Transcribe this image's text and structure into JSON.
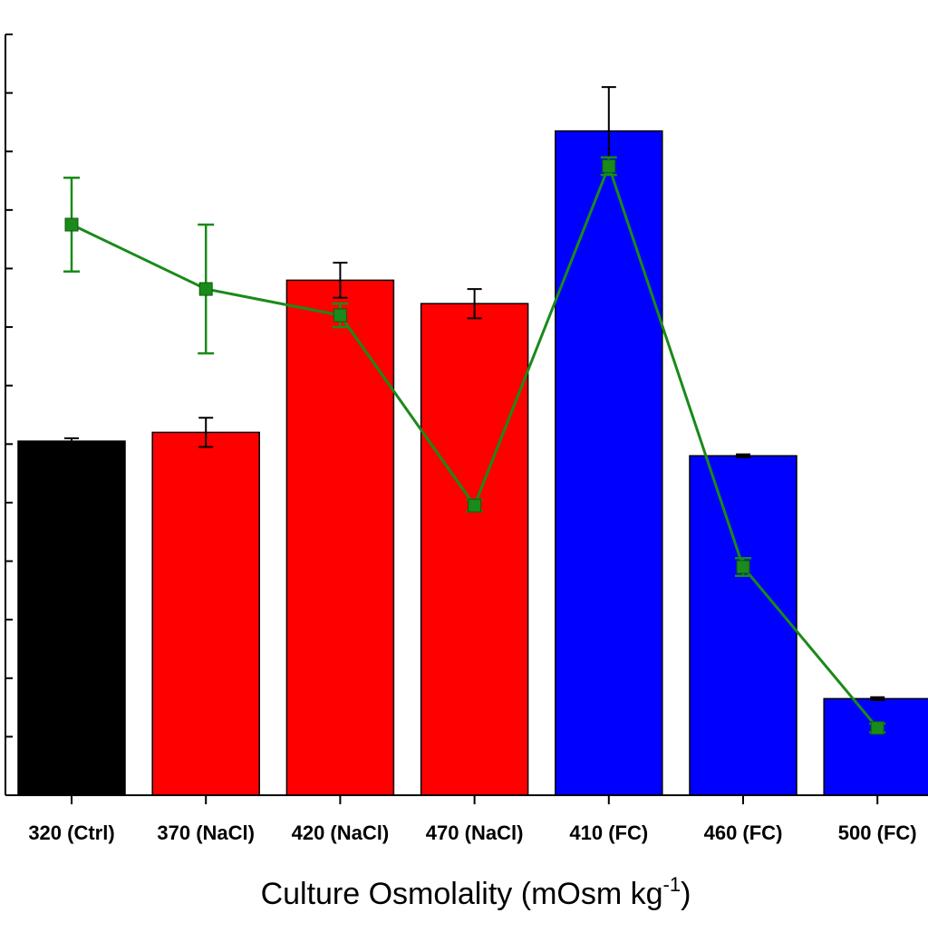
{
  "chart_data": {
    "type": "bar",
    "xlabel": {
      "text": "Culture Osmolality (mOsm kg",
      "superscript": "-1",
      "suffix": ")"
    },
    "categories": [
      "320 (Ctrl)",
      "370 (NaCl)",
      "420 (NaCl)",
      "470 (NaCl)",
      "410 (FC)",
      "460 (FC)",
      "500 (FC)"
    ],
    "bar_colors": [
      "#000000",
      "#ff0000",
      "#ff0000",
      "#ff0000",
      "#0000ff",
      "#0000ff",
      "#0000ff"
    ],
    "bar_values": [
      12.1,
      12.4,
      17.6,
      16.8,
      22.7,
      11.6,
      3.3
    ],
    "bar_errors": [
      0.1,
      0.5,
      0.6,
      0.5,
      1.5,
      0.05,
      0.05
    ],
    "line_series": {
      "color": "#1a8a1a",
      "values": [
        19.5,
        17.3,
        16.4,
        9.9,
        21.5,
        7.8,
        2.3
      ],
      "errors": [
        1.6,
        2.2,
        0.4,
        0.2,
        0.3,
        0.3,
        0.15
      ]
    },
    "ylim": [
      0,
      26
    ],
    "y_tick_step": 2,
    "grid": false
  }
}
